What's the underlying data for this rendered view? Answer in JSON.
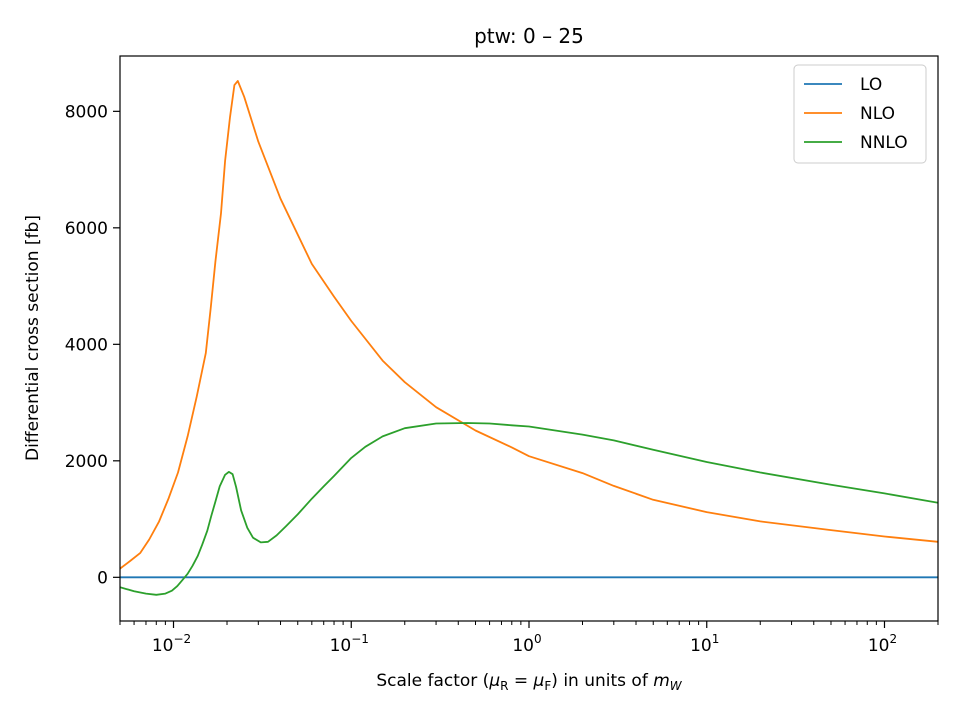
{
  "chart_data": {
    "type": "line",
    "title": "ptw: 0 – 25",
    "xlabel": "Scale factor (μR = μF) in units of mW",
    "ylabel": "Differential cross section [fb]",
    "xscale": "log",
    "xlim": [
      0.005,
      200
    ],
    "ylim": [
      -750,
      8950
    ],
    "x_ticks": [
      {
        "value": 0.01,
        "label": "10−2"
      },
      {
        "value": 0.1,
        "label": "10−1"
      },
      {
        "value": 1,
        "label": "100"
      },
      {
        "value": 10,
        "label": "101"
      },
      {
        "value": 100,
        "label": "102"
      }
    ],
    "y_ticks": [
      {
        "value": 0,
        "label": "0"
      },
      {
        "value": 2000,
        "label": "2000"
      },
      {
        "value": 4000,
        "label": "4000"
      },
      {
        "value": 6000,
        "label": "6000"
      },
      {
        "value": 8000,
        "label": "8000"
      }
    ],
    "grid": false,
    "legend_position": "top-right",
    "series": [
      {
        "name": "LO",
        "color": "#1f77b4",
        "x": [
          0.005,
          200
        ],
        "y": [
          0,
          0
        ]
      },
      {
        "name": "NLO",
        "color": "#ff7f0e",
        "x": [
          0.005,
          0.0057,
          0.0065,
          0.0073,
          0.0083,
          0.0094,
          0.0106,
          0.012,
          0.0135,
          0.0152,
          0.0162,
          0.0172,
          0.0185,
          0.0195,
          0.0208,
          0.022,
          0.023,
          0.025,
          0.03,
          0.04,
          0.06,
          0.08,
          0.1,
          0.15,
          0.2,
          0.3,
          0.5,
          0.8,
          1,
          2,
          3,
          5,
          10,
          20,
          50,
          100,
          200
        ],
        "y": [
          150,
          280,
          420,
          650,
          960,
          1360,
          1800,
          2420,
          3100,
          3850,
          4620,
          5420,
          6250,
          7150,
          7900,
          8450,
          8520,
          8250,
          7480,
          6500,
          5380,
          4820,
          4400,
          3720,
          3350,
          2920,
          2520,
          2230,
          2080,
          1790,
          1570,
          1330,
          1120,
          960,
          810,
          700,
          610
        ]
      },
      {
        "name": "NNLO",
        "color": "#2ca02c",
        "x": [
          0.005,
          0.006,
          0.007,
          0.008,
          0.009,
          0.0098,
          0.0105,
          0.0112,
          0.012,
          0.0128,
          0.0137,
          0.0145,
          0.0155,
          0.0163,
          0.0172,
          0.0182,
          0.0195,
          0.0205,
          0.0215,
          0.0225,
          0.024,
          0.026,
          0.028,
          0.031,
          0.034,
          0.038,
          0.043,
          0.05,
          0.06,
          0.07,
          0.08,
          0.1,
          0.12,
          0.15,
          0.2,
          0.3,
          0.45,
          0.6,
          0.8,
          1,
          2,
          3,
          5,
          10,
          20,
          50,
          100,
          200
        ],
        "y": [
          -170,
          -240,
          -280,
          -300,
          -280,
          -230,
          -150,
          -50,
          60,
          200,
          370,
          560,
          800,
          1050,
          1300,
          1560,
          1760,
          1810,
          1770,
          1550,
          1150,
          850,
          680,
          600,
          610,
          720,
          880,
          1080,
          1350,
          1560,
          1740,
          2050,
          2240,
          2420,
          2560,
          2640,
          2650,
          2640,
          2610,
          2590,
          2450,
          2350,
          2190,
          1980,
          1800,
          1590,
          1440,
          1280
        ]
      }
    ]
  }
}
